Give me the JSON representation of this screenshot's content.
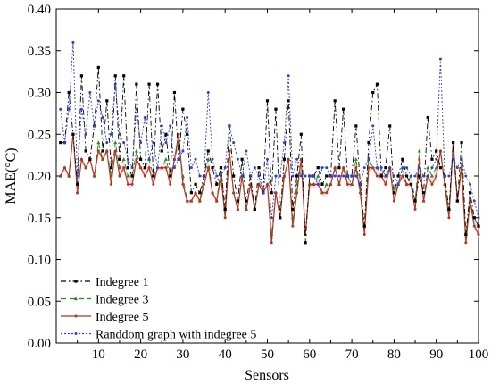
{
  "chart_data": {
    "type": "line",
    "xlabel": "Sensors",
    "ylabel": "MAE(°C)",
    "xlim": [
      0,
      100
    ],
    "ylim": [
      0.0,
      0.4
    ],
    "xticks": [
      "10",
      "20",
      "30",
      "40",
      "50",
      "60",
      "70",
      "80",
      "90",
      "100"
    ],
    "xtick_values": [
      10,
      20,
      30,
      40,
      50,
      60,
      70,
      80,
      90,
      100
    ],
    "yticks": [
      "0.00",
      "0.05",
      "0.10",
      "0.15",
      "0.20",
      "0.25",
      "0.30",
      "0.35",
      "0.40"
    ],
    "ytick_values": [
      0.0,
      0.05,
      0.1,
      0.15,
      0.2,
      0.25,
      0.3,
      0.35,
      0.4
    ],
    "grid": false,
    "legend_position": "bottom-left",
    "x": [
      1,
      2,
      3,
      4,
      5,
      6,
      7,
      8,
      9,
      10,
      11,
      12,
      13,
      14,
      15,
      16,
      17,
      18,
      19,
      20,
      21,
      22,
      23,
      24,
      25,
      26,
      27,
      28,
      29,
      30,
      31,
      32,
      33,
      34,
      35,
      36,
      37,
      38,
      39,
      40,
      41,
      42,
      43,
      44,
      45,
      46,
      47,
      48,
      49,
      50,
      51,
      52,
      53,
      54,
      55,
      56,
      57,
      58,
      59,
      60,
      61,
      62,
      63,
      64,
      65,
      66,
      67,
      68,
      69,
      70,
      71,
      72,
      73,
      74,
      75,
      76,
      77,
      78,
      79,
      80,
      81,
      82,
      83,
      84,
      85,
      86,
      87,
      88,
      89,
      90,
      91,
      92,
      93,
      94,
      95,
      96,
      97,
      98,
      99,
      100
    ],
    "series": [
      {
        "name": "Indegree 1",
        "color": "#000000",
        "dash": "6,3,1.5,3",
        "marker": "square",
        "values": [
          0.24,
          0.24,
          0.3,
          0.25,
          0.19,
          0.32,
          0.23,
          0.22,
          0.26,
          0.33,
          0.23,
          0.29,
          0.21,
          0.32,
          0.22,
          0.32,
          0.21,
          0.2,
          0.31,
          0.22,
          0.21,
          0.31,
          0.2,
          0.31,
          0.23,
          0.25,
          0.2,
          0.3,
          0.22,
          0.28,
          0.25,
          0.18,
          0.19,
          0.18,
          0.2,
          0.23,
          0.21,
          0.19,
          0.21,
          0.16,
          0.26,
          0.2,
          0.17,
          0.22,
          0.17,
          0.2,
          0.16,
          0.21,
          0.18,
          0.29,
          0.18,
          0.28,
          0.15,
          0.22,
          0.29,
          0.16,
          0.2,
          0.25,
          0.12,
          0.2,
          0.2,
          0.21,
          0.19,
          0.2,
          0.2,
          0.29,
          0.21,
          0.28,
          0.2,
          0.2,
          0.26,
          0.19,
          0.14,
          0.24,
          0.3,
          0.31,
          0.2,
          0.21,
          0.26,
          0.18,
          0.2,
          0.22,
          0.2,
          0.19,
          0.17,
          0.2,
          0.18,
          0.27,
          0.22,
          0.23,
          0.21,
          0.2,
          0.16,
          0.24,
          0.17,
          0.24,
          0.13,
          0.18,
          0.15,
          0.14
        ]
      },
      {
        "name": "Indegree 3",
        "color": "#1f8a1f",
        "dash": "6,4",
        "marker": "triangle",
        "values": [
          0.2,
          0.21,
          0.2,
          0.25,
          0.18,
          0.22,
          0.21,
          0.22,
          0.2,
          0.24,
          0.22,
          0.23,
          0.2,
          0.24,
          0.21,
          0.22,
          0.2,
          0.2,
          0.23,
          0.21,
          0.21,
          0.22,
          0.2,
          0.21,
          0.21,
          0.22,
          0.2,
          0.22,
          0.24,
          0.2,
          0.17,
          0.17,
          0.18,
          0.17,
          0.2,
          0.22,
          0.18,
          0.17,
          0.21,
          0.16,
          0.23,
          0.18,
          0.16,
          0.2,
          0.16,
          0.19,
          0.16,
          0.19,
          0.18,
          0.19,
          0.13,
          0.18,
          0.15,
          0.2,
          0.22,
          0.15,
          0.19,
          0.22,
          0.13,
          0.19,
          0.19,
          0.2,
          0.18,
          0.19,
          0.19,
          0.21,
          0.19,
          0.21,
          0.2,
          0.19,
          0.22,
          0.18,
          0.14,
          0.22,
          0.21,
          0.21,
          0.2,
          0.2,
          0.21,
          0.18,
          0.19,
          0.21,
          0.19,
          0.2,
          0.17,
          0.23,
          0.17,
          0.21,
          0.2,
          0.21,
          0.23,
          0.19,
          0.16,
          0.23,
          0.17,
          0.22,
          0.13,
          0.17,
          0.15,
          0.14
        ]
      },
      {
        "name": "Indegree 5",
        "color": "#b5351f",
        "dash": "",
        "marker": "dot",
        "values": [
          0.2,
          0.21,
          0.2,
          0.25,
          0.18,
          0.22,
          0.21,
          0.22,
          0.2,
          0.23,
          0.22,
          0.23,
          0.19,
          0.23,
          0.2,
          0.21,
          0.19,
          0.19,
          0.22,
          0.21,
          0.2,
          0.21,
          0.19,
          0.21,
          0.21,
          0.21,
          0.19,
          0.22,
          0.25,
          0.19,
          0.17,
          0.17,
          0.18,
          0.17,
          0.19,
          0.21,
          0.18,
          0.17,
          0.2,
          0.15,
          0.23,
          0.18,
          0.16,
          0.2,
          0.16,
          0.19,
          0.16,
          0.19,
          0.18,
          0.19,
          0.12,
          0.18,
          0.15,
          0.2,
          0.22,
          0.14,
          0.18,
          0.22,
          0.13,
          0.19,
          0.19,
          0.19,
          0.18,
          0.18,
          0.19,
          0.21,
          0.19,
          0.21,
          0.19,
          0.19,
          0.21,
          0.18,
          0.13,
          0.21,
          0.21,
          0.2,
          0.2,
          0.19,
          0.21,
          0.17,
          0.19,
          0.2,
          0.19,
          0.19,
          0.16,
          0.22,
          0.17,
          0.2,
          0.19,
          0.2,
          0.23,
          0.19,
          0.15,
          0.24,
          0.17,
          0.21,
          0.12,
          0.17,
          0.14,
          0.13
        ]
      },
      {
        "name": "Randdom graph with indegree 5",
        "color": "#2f3fcf",
        "dash": "2,2",
        "marker": "dot",
        "values": [
          0.28,
          0.24,
          0.28,
          0.36,
          0.2,
          0.28,
          0.25,
          0.3,
          0.26,
          0.29,
          0.27,
          0.24,
          0.25,
          0.31,
          0.25,
          0.24,
          0.22,
          0.21,
          0.28,
          0.24,
          0.27,
          0.22,
          0.24,
          0.21,
          0.26,
          0.24,
          0.26,
          0.21,
          0.22,
          0.23,
          0.27,
          0.21,
          0.22,
          0.2,
          0.2,
          0.3,
          0.22,
          0.2,
          0.2,
          0.21,
          0.26,
          0.24,
          0.22,
          0.2,
          0.23,
          0.2,
          0.21,
          0.2,
          0.18,
          0.22,
          0.15,
          0.2,
          0.2,
          0.24,
          0.32,
          0.2,
          0.22,
          0.2,
          0.2,
          0.2,
          0.2,
          0.19,
          0.21,
          0.21,
          0.2,
          0.2,
          0.2,
          0.2,
          0.2,
          0.2,
          0.2,
          0.19,
          0.21,
          0.22,
          0.26,
          0.21,
          0.21,
          0.2,
          0.21,
          0.2,
          0.19,
          0.21,
          0.21,
          0.2,
          0.2,
          0.21,
          0.2,
          0.2,
          0.21,
          0.22,
          0.34,
          0.2,
          0.2,
          0.22,
          0.21,
          0.22,
          0.2,
          0.19,
          0.17,
          0.15
        ]
      }
    ]
  }
}
